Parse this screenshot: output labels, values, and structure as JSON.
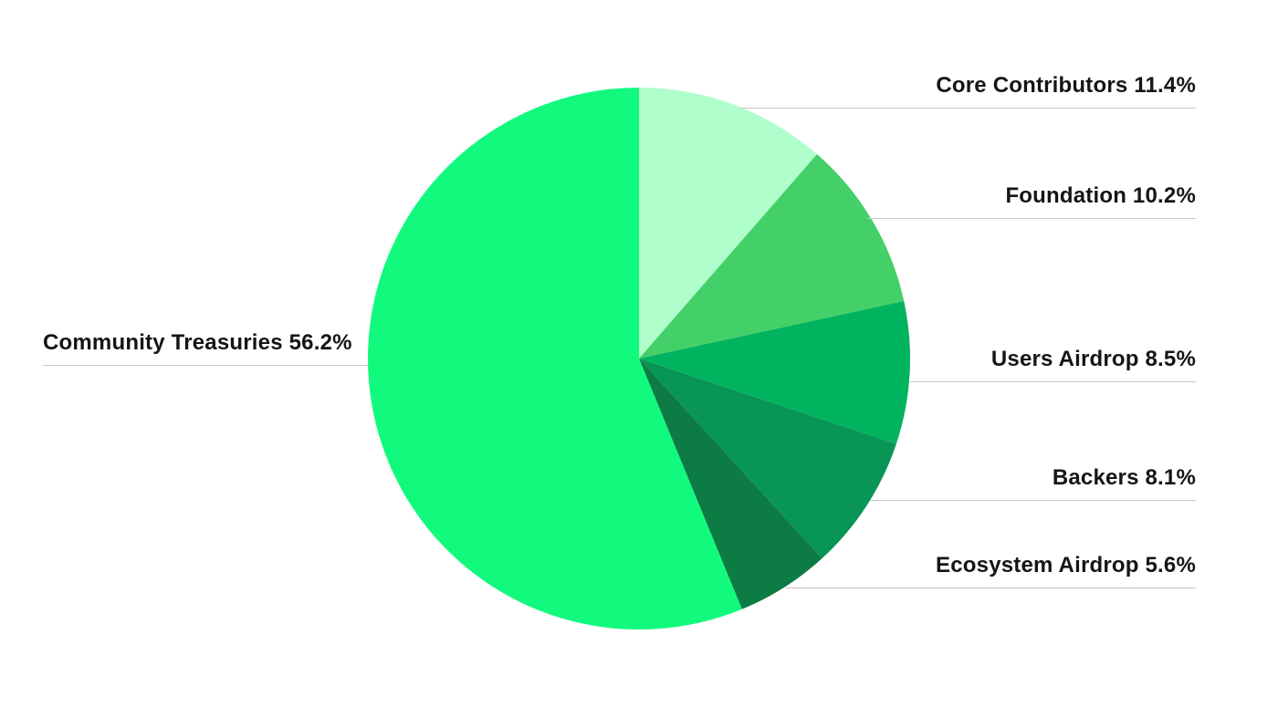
{
  "page": {
    "background_color": "#ffffff"
  },
  "chart_data": {
    "type": "pie",
    "title": "",
    "direction": "clockwise",
    "start_angle_deg": 0,
    "total": 100,
    "legend_position": "callout-labels",
    "label_text_color": "#151515",
    "label_line_color": "#c6c6c6",
    "slices": [
      {
        "label": "Core Contributors",
        "value": 11.4,
        "display": "Core Contributors 11.4%",
        "color": "#AFFECB"
      },
      {
        "label": "Foundation",
        "value": 10.2,
        "display": "Foundation 10.2%",
        "color": "#44D068"
      },
      {
        "label": "Users Airdrop",
        "value": 8.5,
        "display": "Users Airdrop 8.5%",
        "color": "#00B35E"
      },
      {
        "label": "Backers",
        "value": 8.1,
        "display": "Backers 8.1%",
        "color": "#089555"
      },
      {
        "label": "Ecosystem Airdrop",
        "value": 5.6,
        "display": "Ecosystem Airdrop 5.6%",
        "color": "#0D7B44"
      },
      {
        "label": "Community Treasuries",
        "value": 56.2,
        "display": "Community Treasuries 56.2%",
        "color": "#12FA7D"
      }
    ]
  }
}
